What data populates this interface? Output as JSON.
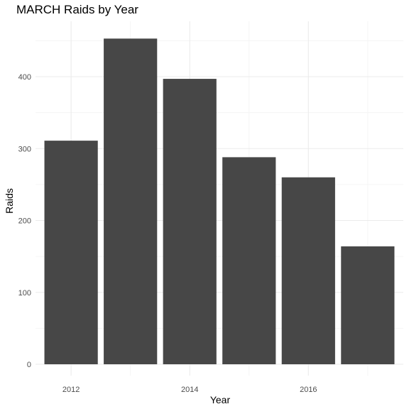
{
  "chart_data": {
    "type": "bar",
    "title": "MARCH Raids by Year",
    "xlabel": "Year",
    "ylabel": "Raids",
    "categories": [
      "2012",
      "2013",
      "2014",
      "2015",
      "2016",
      "2017"
    ],
    "values": [
      311,
      453,
      397,
      288,
      260,
      164
    ],
    "x_tick_labels": [
      "2012",
      "2014",
      "2016"
    ],
    "y_tick_labels": [
      "0",
      "100",
      "200",
      "300",
      "400"
    ],
    "ylim": [
      0,
      475
    ],
    "grid": true,
    "legend": "none",
    "bar_color": "#474747",
    "grid_color": "#ebebeb",
    "minor_grid_color": "#f5f5f5",
    "tick_label_color": "#4d4d4d"
  }
}
